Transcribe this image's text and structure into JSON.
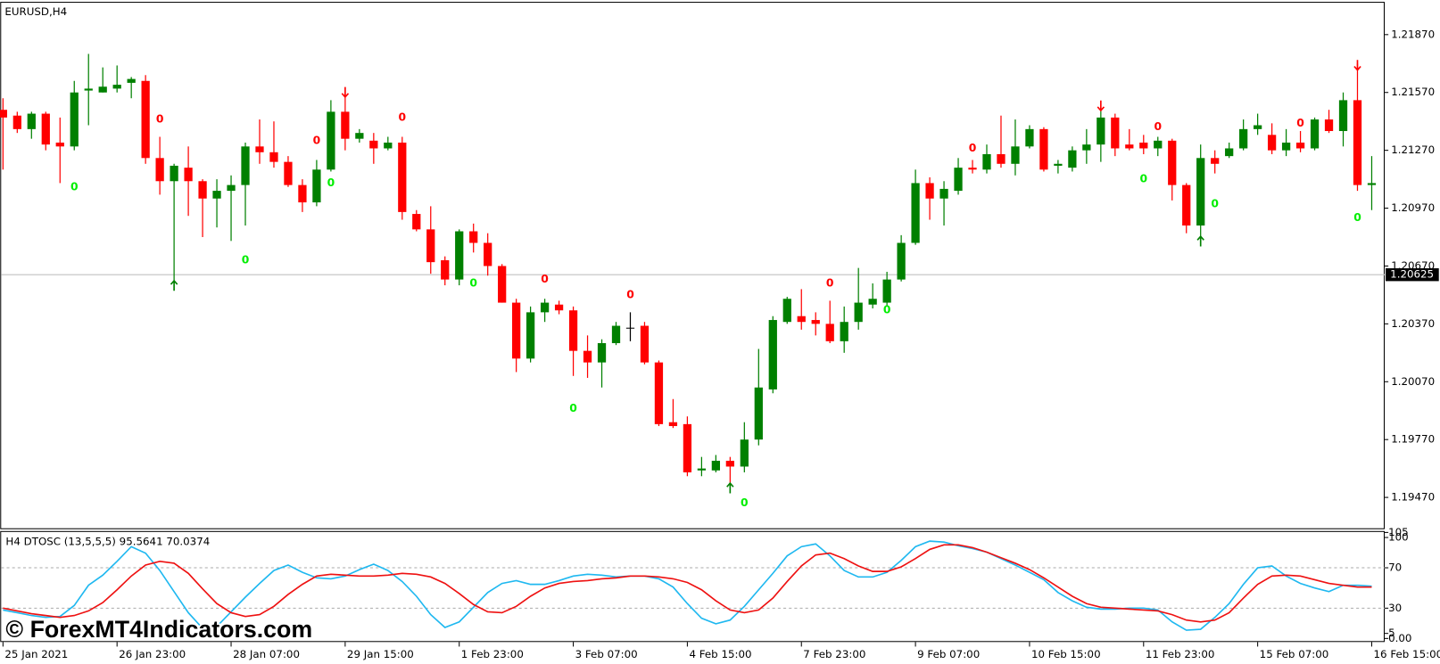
{
  "chart_data": [
    {
      "type": "candlestick",
      "title": "EURUSD,H4",
      "categories": [
        "25 Jan 2021",
        null,
        null,
        null,
        null,
        null,
        null,
        null,
        "26 Jan 23:00",
        null,
        null,
        null,
        null,
        null,
        null,
        null,
        "28 Jan 07:00",
        null,
        null,
        null,
        null,
        null,
        null,
        null,
        "29 Jan 15:00",
        null,
        null,
        null,
        null,
        null,
        null,
        null,
        "1 Feb 23:00",
        null,
        null,
        null,
        null,
        null,
        null,
        null,
        "3 Feb 07:00",
        null,
        null,
        null,
        null,
        null,
        null,
        null,
        "4 Feb 15:00",
        null,
        null,
        null,
        null,
        null,
        null,
        null,
        "7 Feb 23:00",
        null,
        null,
        null,
        null,
        null,
        null,
        null,
        "9 Feb 07:00",
        null,
        null,
        null,
        null,
        null,
        null,
        null,
        "10 Feb 15:00",
        null,
        null,
        null,
        null,
        null,
        null,
        null,
        "11 Feb 23:00",
        null,
        null,
        null,
        null,
        null,
        null,
        null,
        "15 Feb 07:00",
        null,
        null,
        null,
        null,
        null,
        null,
        null,
        "16 Feb 15:00"
      ],
      "open": [
        1.2148,
        1.2145,
        1.2138,
        1.2146,
        1.2131,
        1.2129,
        1.2158,
        1.2157,
        1.2159,
        1.2162,
        1.2163,
        1.2123,
        1.2111,
        1.2118,
        1.2111,
        1.2102,
        1.2106,
        1.2109,
        1.2129,
        1.2126,
        1.2121,
        1.2109,
        1.21,
        1.2117,
        1.2147,
        1.2133,
        1.2132,
        1.2128,
        1.2131,
        1.2094,
        1.2086,
        1.207,
        1.206,
        1.2085,
        1.2079,
        1.2067,
        1.2048,
        1.2019,
        1.2043,
        1.2047,
        1.2044,
        1.2023,
        1.2017,
        1.2027,
        1.2035,
        1.2036,
        1.2017,
        1.1986,
        1.1985,
        1.1961,
        1.1961,
        1.1966,
        1.1963,
        1.1977,
        1.2003,
        1.2038,
        1.2041,
        1.2039,
        1.2037,
        1.2028,
        1.2038,
        1.2047,
        1.2048,
        1.206,
        1.2079,
        1.211,
        1.2102,
        1.2106,
        1.2118,
        1.2117,
        1.2125,
        1.212,
        1.2129,
        1.2138,
        1.2119,
        1.2118,
        1.2127,
        1.213,
        1.2144,
        1.213,
        1.2131,
        1.2128,
        1.2132,
        1.2109,
        1.2088,
        1.2123,
        1.2124,
        1.2128,
        1.2138,
        1.2135,
        1.2127,
        1.2131,
        1.2128,
        1.2143,
        1.2137,
        1.2153,
        1.2109
      ],
      "high": [
        1.2154,
        1.2147,
        1.2147,
        1.2147,
        1.2144,
        1.2163,
        1.2177,
        1.217,
        1.2171,
        1.2165,
        1.2166,
        1.2134,
        1.212,
        1.2129,
        1.2112,
        1.2112,
        1.2114,
        1.2131,
        1.2143,
        1.2142,
        1.2124,
        1.2112,
        1.2122,
        1.2153,
        1.2157,
        1.2138,
        1.2136,
        1.2134,
        1.2134,
        1.2096,
        1.2098,
        1.2072,
        1.2086,
        1.2089,
        1.2084,
        1.2068,
        1.205,
        1.2046,
        1.205,
        1.2049,
        1.2046,
        1.2031,
        1.2029,
        1.2038,
        1.2043,
        1.2038,
        1.2018,
        1.1998,
        1.1989,
        1.1968,
        1.1969,
        1.1968,
        1.1986,
        1.2024,
        1.2041,
        1.2051,
        1.2055,
        1.2043,
        1.2049,
        1.2046,
        1.2066,
        1.2058,
        1.2064,
        1.2083,
        1.2117,
        1.2113,
        1.2111,
        1.2123,
        1.2122,
        1.213,
        1.2145,
        1.2143,
        1.214,
        1.2139,
        1.2122,
        1.2129,
        1.2138,
        1.215,
        1.2146,
        1.2138,
        1.2135,
        1.2134,
        1.2133,
        1.211,
        1.213,
        1.2127,
        1.2131,
        1.2143,
        1.2146,
        1.2141,
        1.2138,
        1.2137,
        1.2144,
        1.2148,
        1.2157,
        1.2172,
        1.2124
      ],
      "low": [
        1.2117,
        1.2136,
        1.2133,
        1.2127,
        1.211,
        1.2127,
        1.214,
        1.2157,
        1.2157,
        1.2154,
        1.212,
        1.2104,
        1.2058,
        1.2093,
        1.2082,
        1.2087,
        1.208,
        1.2088,
        1.212,
        1.2118,
        1.2108,
        1.2095,
        1.2098,
        1.2116,
        1.2127,
        1.2131,
        1.212,
        1.2127,
        1.2091,
        1.2085,
        1.2063,
        1.2057,
        1.2057,
        1.2074,
        1.2062,
        1.2048,
        1.2012,
        1.2017,
        1.2038,
        1.2042,
        1.201,
        1.2009,
        1.2004,
        1.2026,
        1.2028,
        1.2016,
        1.1984,
        1.1983,
        1.1958,
        1.1958,
        1.196,
        1.1953,
        1.196,
        1.1974,
        1.2001,
        1.2037,
        1.2034,
        1.2031,
        1.2027,
        1.2022,
        1.2034,
        1.2045,
        1.2046,
        1.2059,
        1.2078,
        1.2091,
        1.2088,
        1.2104,
        1.2115,
        1.2115,
        1.2118,
        1.2114,
        1.2128,
        1.2116,
        1.2115,
        1.2116,
        1.212,
        1.2121,
        1.2124,
        1.2127,
        1.2125,
        1.2124,
        1.2101,
        1.2084,
        1.2081,
        1.2115,
        1.2123,
        1.2127,
        1.2135,
        1.2125,
        1.2124,
        1.2126,
        1.2127,
        1.2136,
        1.2129,
        1.2106,
        1.2096
      ],
      "close": [
        1.2144,
        1.2138,
        1.2146,
        1.213,
        1.2129,
        1.2157,
        1.2159,
        1.216,
        1.2161,
        1.2164,
        1.2123,
        1.2111,
        1.2119,
        1.2111,
        1.2102,
        1.2106,
        1.2109,
        1.2129,
        1.2126,
        1.2121,
        1.2109,
        1.21,
        1.2117,
        1.2147,
        1.2133,
        1.2136,
        1.2128,
        1.2131,
        1.2095,
        1.2086,
        1.2069,
        1.206,
        1.2085,
        1.2079,
        1.2067,
        1.2048,
        1.2019,
        1.2043,
        1.2048,
        1.2044,
        1.2023,
        1.2017,
        1.2027,
        1.2036,
        1.2035,
        1.2017,
        1.1985,
        1.1984,
        1.196,
        1.1962,
        1.1966,
        1.1963,
        1.1977,
        1.2004,
        1.2039,
        1.205,
        1.2038,
        1.2037,
        1.2028,
        1.2038,
        1.2048,
        1.205,
        1.206,
        1.2079,
        1.211,
        1.2102,
        1.2107,
        1.2118,
        1.2117,
        1.2125,
        1.212,
        1.2129,
        1.2138,
        1.2117,
        1.212,
        1.2127,
        1.213,
        1.2144,
        1.2128,
        1.2128,
        1.2128,
        1.2132,
        1.2109,
        1.2088,
        1.2123,
        1.212,
        1.2128,
        1.2138,
        1.214,
        1.2127,
        1.2131,
        1.2128,
        1.2143,
        1.2137,
        1.2153,
        1.2109,
        1.211
      ],
      "up_color": "#008000",
      "down_color": "#ff0000",
      "doji_color": "#000000",
      "ylim": [
        1.1931,
        1.2204
      ],
      "yticks": [
        {
          "value": 1.2187,
          "label": "1.21870"
        },
        {
          "value": 1.2157,
          "label": "1.21570"
        },
        {
          "value": 1.2127,
          "label": "1.21270"
        },
        {
          "value": 1.2097,
          "label": "1.20970"
        },
        {
          "value": 1.2067,
          "label": "1.20670"
        },
        {
          "value": 1.2037,
          "label": "1.20370"
        },
        {
          "value": 1.2007,
          "label": "1.20070"
        },
        {
          "value": 1.1977,
          "label": "1.19770"
        },
        {
          "value": 1.1947,
          "label": "1.19470"
        }
      ],
      "current_price": {
        "value": 1.20625,
        "label": "1.20625"
      },
      "down_arrows": [
        {
          "index": 24,
          "price": 1.2157
        },
        {
          "index": 77,
          "price": 1.215
        },
        {
          "index": 95,
          "price": 1.2171
        }
      ],
      "up_arrows": [
        {
          "index": 12,
          "price": 1.2057
        },
        {
          "index": 51,
          "price": 1.1952
        },
        {
          "index": 84,
          "price": 1.208
        }
      ],
      "signal_label": "0",
      "sell_signals": [
        {
          "index": 11,
          "price": 1.2143
        },
        {
          "index": 22,
          "price": 1.2132
        },
        {
          "index": 28,
          "price": 1.2144
        },
        {
          "index": 38,
          "price": 1.206
        },
        {
          "index": 44,
          "price": 1.2052
        },
        {
          "index": 58,
          "price": 1.2058
        },
        {
          "index": 68,
          "price": 1.2128
        },
        {
          "index": 81,
          "price": 1.2139
        },
        {
          "index": 91,
          "price": 1.2141
        }
      ],
      "buy_signals": [
        {
          "index": 5,
          "price": 1.2108
        },
        {
          "index": 17,
          "price": 1.207
        },
        {
          "index": 23,
          "price": 1.211
        },
        {
          "index": 33,
          "price": 1.2058
        },
        {
          "index": 40,
          "price": 1.1993
        },
        {
          "index": 52,
          "price": 1.1944
        },
        {
          "index": 62,
          "price": 1.2044
        },
        {
          "index": 80,
          "price": 1.2112
        },
        {
          "index": 85,
          "price": 1.2099
        },
        {
          "index": 95,
          "price": 1.2092
        }
      ],
      "sell_color": "#ff0000",
      "buy_color": "#00ee00"
    },
    {
      "type": "line",
      "title": "H4 DTOSC (13,5,5,5) 95.5641 70.0374",
      "ylim": [
        -3.5,
        105.5
      ],
      "yticks": [
        105,
        100,
        70,
        30,
        5,
        {
          "value": 0,
          "label": "0.00"
        }
      ],
      "levels": [
        70,
        30
      ],
      "series": [
        {
          "color": "#1fb8f0",
          "values": [
            28.2,
            25.5,
            22.7,
            20.9,
            21.8,
            32.7,
            52.7,
            62.7,
            76.4,
            90.9,
            84.5,
            67.3,
            46.4,
            25.5,
            10.0,
            11.8,
            26.4,
            40.9,
            54.5,
            67.3,
            72.7,
            65.5,
            60.0,
            59.1,
            61.8,
            68.2,
            73.6,
            67.3,
            56.4,
            41.8,
            23.6,
            10.9,
            16.4,
            30.9,
            45.5,
            54.5,
            57.3,
            53.6,
            53.6,
            57.3,
            61.8,
            63.6,
            62.7,
            60.9,
            61.8,
            61.8,
            59.1,
            50.9,
            34.5,
            20.0,
            14.5,
            18.2,
            31.8,
            48.2,
            64.5,
            81.8,
            90.9,
            93.6,
            81.8,
            67.3,
            60.9,
            60.9,
            65.5,
            77.3,
            90.9,
            96.4,
            95.5,
            91.8,
            89.1,
            85.5,
            79.1,
            72.7,
            65.5,
            58.2,
            45.5,
            37.3,
            30.9,
            29.1,
            29.1,
            30.0,
            30.0,
            28.2,
            16.4,
            8.2,
            9.1,
            20.9,
            34.5,
            53.6,
            70.0,
            71.8,
            61.8,
            54.5,
            50.0,
            46.4,
            52.7,
            52.7,
            51.8
          ]
        },
        {
          "color": "#ee1111",
          "values": [
            30.0,
            27.3,
            24.5,
            22.7,
            20.9,
            22.7,
            27.3,
            35.5,
            48.2,
            61.8,
            72.7,
            76.4,
            74.5,
            64.5,
            49.1,
            34.5,
            25.5,
            21.8,
            23.6,
            31.8,
            43.6,
            53.6,
            61.8,
            63.6,
            62.7,
            61.8,
            61.8,
            62.7,
            64.5,
            63.6,
            60.9,
            54.5,
            44.5,
            33.6,
            26.4,
            25.5,
            31.8,
            41.8,
            50.0,
            54.5,
            56.4,
            57.3,
            59.1,
            60.0,
            61.8,
            61.8,
            60.9,
            59.1,
            55.5,
            48.2,
            37.3,
            28.2,
            25.5,
            28.2,
            40.0,
            56.4,
            71.8,
            82.7,
            84.5,
            79.1,
            71.8,
            66.4,
            66.4,
            70.9,
            79.1,
            88.2,
            92.7,
            92.7,
            90.0,
            85.5,
            80.0,
            74.5,
            68.2,
            60.0,
            50.9,
            41.8,
            34.5,
            30.9,
            30.0,
            29.1,
            28.2,
            27.3,
            23.6,
            18.2,
            16.4,
            18.2,
            25.5,
            40.0,
            53.6,
            61.8,
            62.7,
            61.8,
            58.2,
            54.5,
            52.7,
            50.9,
            50.9
          ]
        }
      ]
    }
  ],
  "watermark": "© ForexMT4Indicators.com"
}
